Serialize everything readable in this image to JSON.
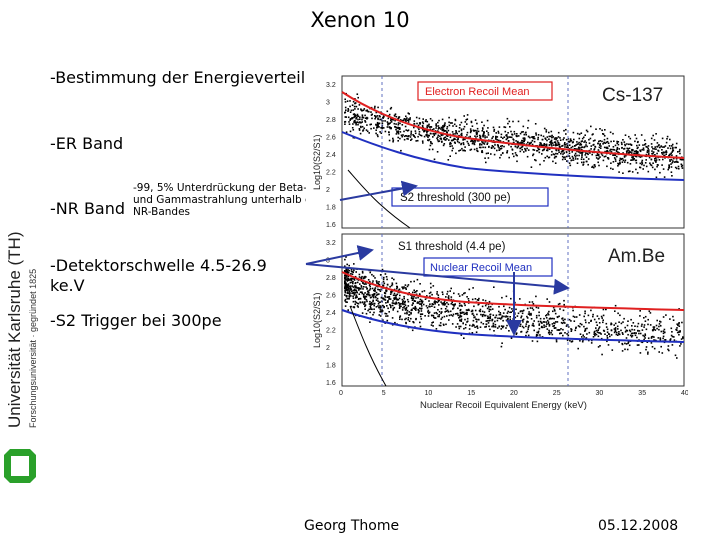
{
  "slide": {
    "title": "Xenon 10",
    "bullets": [
      "-Bestimmung der Energieverteilung",
      "-ER Band",
      "-NR Band",
      "-Detektorschwelle 4.5-26.9",
      "ke.V",
      "-S2 Trigger bei 300pe"
    ],
    "annotation": [
      "-99, 5% Unterdrückung der Beta-",
      "und Gammastrahlung unterhalb des",
      "NR-Bandes"
    ],
    "footer": {
      "author": "Georg Thome",
      "date": "05.12.2008"
    },
    "sidebar": {
      "university": "Universität Karlsruhe (TH)",
      "subtitle": "Forschungsuniversität · gegründet 1825"
    }
  },
  "figure": {
    "upper_panel": {
      "label_source": "Cs-137",
      "label_mean": "Electron Recoil Mean",
      "label_threshold": "S2 threshold (300 pe)",
      "ylabel": "Log10(S2/S1)",
      "yticks": [
        "3.2",
        "3",
        "2.8",
        "2.6",
        "2.4",
        "2.2",
        "2",
        "1.8",
        "1.6"
      ]
    },
    "lower_panel": {
      "label_source": "Am.Be",
      "label_mean": "Nuclear Recoil Mean",
      "label_threshold": "S1 threshold (4.4 pe)",
      "ylabel": "Log10(S2/S1)",
      "yticks": [
        "3.2",
        "3",
        "2.8",
        "2.6",
        "2.4",
        "2.2",
        "2",
        "1.8",
        "1.6"
      ],
      "xlabel": "Nuclear Recoil Equivalent Energy (keV)",
      "xticks": [
        "0",
        "5",
        "10",
        "15",
        "20",
        "25",
        "30",
        "35",
        "40"
      ]
    },
    "colors": {
      "er_line": "#e02020",
      "nr_line": "#2030c0",
      "threshold": "#5060c0",
      "points": "#000000"
    }
  }
}
